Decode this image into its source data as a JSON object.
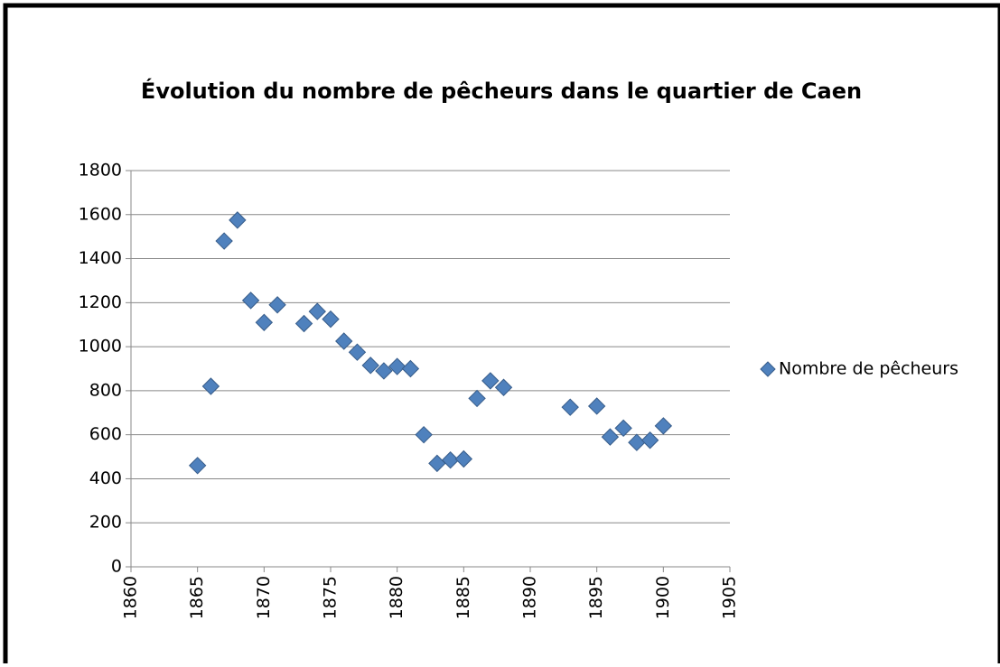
{
  "chart_data": {
    "type": "scatter",
    "title": "Évolution du nombre de pêcheurs dans le quartier de Caen",
    "series": [
      {
        "name": "Nombre de pêcheurs",
        "color": "#4f81bd",
        "x": [
          1865,
          1866,
          1867,
          1868,
          1869,
          1870,
          1871,
          1873,
          1874,
          1875,
          1876,
          1877,
          1878,
          1879,
          1880,
          1881,
          1882,
          1883,
          1884,
          1885,
          1886,
          1887,
          1888,
          1893,
          1895,
          1896,
          1897,
          1898,
          1899,
          1900
        ],
        "values": [
          460,
          820,
          1480,
          1575,
          1210,
          1110,
          1190,
          1105,
          1160,
          1125,
          1025,
          975,
          915,
          890,
          910,
          900,
          600,
          470,
          485,
          490,
          765,
          845,
          815,
          725,
          730,
          590,
          630,
          565,
          575,
          640
        ]
      }
    ],
    "xlim": [
      1860,
      1905
    ],
    "xticks": [
      1860,
      1865,
      1870,
      1875,
      1880,
      1885,
      1890,
      1895,
      1900,
      1905
    ],
    "ylim": [
      0,
      1800
    ],
    "yticks": [
      0,
      200,
      400,
      600,
      800,
      1000,
      1200,
      1400,
      1600,
      1800
    ],
    "grid": true,
    "legend": "right"
  }
}
